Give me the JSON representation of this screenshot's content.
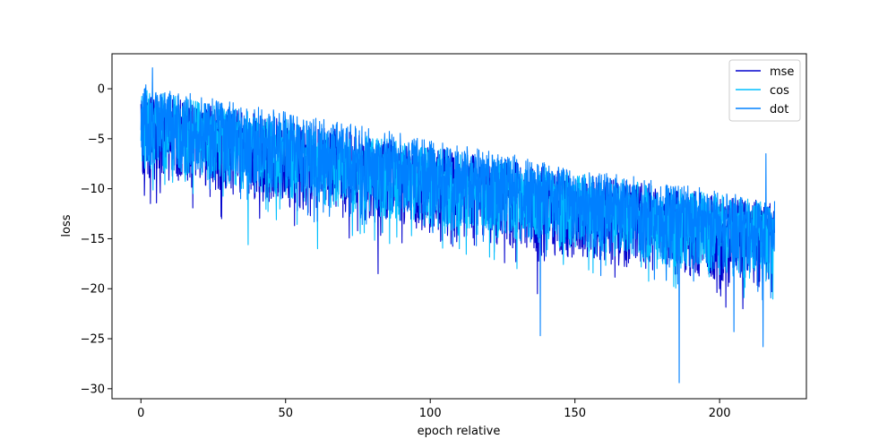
{
  "chart_data": {
    "type": "line",
    "title": "",
    "xlabel": "epoch relative",
    "ylabel": "loss",
    "xlim": [
      -10,
      230
    ],
    "ylim": [
      -31,
      3.5
    ],
    "xticks": [
      0,
      50,
      100,
      150,
      200
    ],
    "yticks": [
      0,
      -5,
      -10,
      -15,
      -20,
      -25,
      -30
    ],
    "grid": false,
    "legend_position": "top-right",
    "x_range": [
      0,
      219
    ],
    "series": [
      {
        "name": "mse",
        "color": "#0000cd",
        "trend": {
          "x": [
            0,
            50,
            100,
            150,
            200,
            219
          ],
          "y": [
            -3.5,
            -6.3,
            -9.0,
            -11.5,
            -13.8,
            -14.6
          ]
        },
        "band_below": 5.5,
        "band_above": 3.2,
        "extremes": [
          {
            "x": 82,
            "y": -18.5
          },
          {
            "x": 137,
            "y": -20.5
          },
          {
            "x": 200,
            "y": -20.0
          },
          {
            "x": 208,
            "y": -22.0
          },
          {
            "x": 218,
            "y": -20.3
          }
        ]
      },
      {
        "name": "cos",
        "color": "#00bfff",
        "trend": {
          "x": [
            0,
            50,
            100,
            150,
            200,
            219
          ],
          "y": [
            -3.0,
            -6.0,
            -8.8,
            -11.3,
            -13.6,
            -14.4
          ]
        },
        "band_below": 5.0,
        "band_above": 3.0,
        "extremes": [
          {
            "x": 37,
            "y": -15.6
          },
          {
            "x": 61,
            "y": -16.0
          },
          {
            "x": 110,
            "y": -16.0
          },
          {
            "x": 130,
            "y": -18.0
          }
        ]
      },
      {
        "name": "dot",
        "color": "#0080ff",
        "trend": {
          "x": [
            0,
            50,
            100,
            150,
            200,
            219
          ],
          "y": [
            -2.5,
            -5.3,
            -8.0,
            -10.8,
            -13.2,
            -14.0
          ]
        },
        "band_below": 5.0,
        "band_above": 3.0,
        "extremes": [
          {
            "x": 4,
            "y": 2.1
          },
          {
            "x": 138,
            "y": -24.7
          },
          {
            "x": 186,
            "y": -29.4
          },
          {
            "x": 205,
            "y": -24.3
          },
          {
            "x": 215,
            "y": -25.8
          },
          {
            "x": 216,
            "y": -6.5
          }
        ]
      }
    ]
  }
}
